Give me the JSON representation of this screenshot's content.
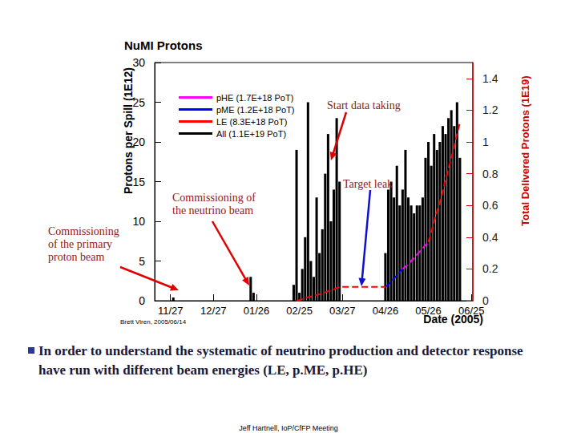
{
  "chart_data": {
    "type": "bar",
    "title": "NuMI Protons",
    "x_label": "Date (2005)",
    "y_label": "Protons per Spill (1E12)",
    "y2_label": "Total Delivered Protons (1E19)",
    "categories": [
      null,
      null,
      null,
      null,
      null,
      "11/27",
      null,
      null,
      null,
      null,
      null,
      null,
      null,
      null,
      null,
      null,
      null,
      null,
      null,
      null,
      "12/27",
      null,
      null,
      null,
      null,
      null,
      null,
      null,
      null,
      null,
      null,
      null,
      null,
      null,
      null,
      "01/26",
      null,
      null,
      null,
      null,
      null,
      null,
      null,
      null,
      null,
      null,
      null,
      null,
      null,
      null,
      "02/25",
      null,
      null,
      null,
      null,
      null,
      null,
      null,
      null,
      null,
      null,
      null,
      null,
      null,
      null,
      "03/27",
      null,
      null,
      null,
      null,
      null,
      null,
      null,
      null,
      null,
      null,
      null,
      null,
      null,
      null,
      "04/26",
      null,
      null,
      null,
      null,
      null,
      null,
      null,
      null,
      null,
      null,
      null,
      null,
      null,
      null,
      "05/26",
      null,
      null,
      null,
      null,
      null,
      null,
      null,
      null,
      null,
      null,
      null,
      null,
      null,
      null,
      "06/25"
    ],
    "series": [
      {
        "name": "pHE (1.7E+18 PoT)",
        "type": "line",
        "axis": "y2",
        "color": "#ff00ff",
        "line_style": "dashed",
        "values": [
          null,
          null,
          null,
          null,
          null,
          null,
          null,
          null,
          null,
          null,
          null,
          null,
          null,
          null,
          null,
          null,
          null,
          null,
          null,
          null,
          null,
          null,
          null,
          null,
          null,
          null,
          null,
          null,
          null,
          null,
          null,
          null,
          null,
          null,
          null,
          null,
          null,
          null,
          null,
          null,
          null,
          null,
          null,
          null,
          null,
          null,
          null,
          null,
          null,
          null,
          null,
          null,
          null,
          null,
          null,
          null,
          null,
          null,
          null,
          null,
          null,
          null,
          null,
          null,
          null,
          null,
          null,
          null,
          null,
          null,
          null,
          null,
          null,
          null,
          null,
          null,
          null,
          null,
          null,
          null,
          null,
          null,
          null,
          null,
          null,
          null,
          0.2,
          0.215,
          0.23,
          0.25,
          0.27,
          0.29,
          0.31,
          0.33,
          0.35,
          0.37,
          null,
          null,
          null,
          null,
          null,
          null,
          null,
          null,
          null,
          null,
          null,
          null,
          null,
          null,
          null
        ]
      },
      {
        "name": "pME (1.2E+18 PoT)",
        "type": "line",
        "axis": "y2",
        "color": "#0000ff",
        "line_style": "dashed",
        "values": [
          null,
          null,
          null,
          null,
          null,
          null,
          null,
          null,
          null,
          null,
          null,
          null,
          null,
          null,
          null,
          null,
          null,
          null,
          null,
          null,
          null,
          null,
          null,
          null,
          null,
          null,
          null,
          null,
          null,
          null,
          null,
          null,
          null,
          null,
          null,
          null,
          null,
          null,
          null,
          null,
          null,
          null,
          null,
          null,
          null,
          null,
          null,
          null,
          null,
          null,
          null,
          null,
          null,
          null,
          null,
          null,
          null,
          null,
          null,
          null,
          null,
          null,
          null,
          null,
          null,
          null,
          null,
          null,
          null,
          null,
          null,
          null,
          null,
          null,
          null,
          null,
          null,
          null,
          null,
          null,
          0.087,
          0.1,
          0.12,
          0.14,
          0.16,
          0.18,
          0.2,
          null,
          null,
          null,
          null,
          null,
          null,
          null,
          null,
          null,
          null,
          null,
          null,
          null,
          null,
          null,
          null,
          null,
          null,
          null,
          null,
          null,
          null,
          null,
          null
        ]
      },
      {
        "name": "LE (8.3E+18 PoT)",
        "type": "line",
        "axis": "y2",
        "color": "#ff0000",
        "line_style": "dashed",
        "values": [
          null,
          null,
          null,
          null,
          null,
          null,
          null,
          null,
          null,
          null,
          null,
          null,
          null,
          null,
          null,
          null,
          null,
          null,
          null,
          null,
          null,
          null,
          null,
          null,
          null,
          null,
          null,
          null,
          null,
          null,
          null,
          null,
          null,
          null,
          null,
          null,
          null,
          null,
          null,
          null,
          null,
          null,
          null,
          null,
          null,
          null,
          null,
          null,
          null,
          0,
          0.004,
          0.01,
          0.016,
          0.022,
          0.026,
          0.03,
          0.036,
          0.04,
          0.046,
          0.052,
          0.06,
          0.065,
          0.071,
          0.08,
          0.087,
          0.087,
          0.087,
          0.087,
          0.087,
          0.087,
          0.087,
          0.087,
          0.087,
          0.087,
          0.087,
          0.087,
          0.087,
          0.087,
          0.087,
          0.087,
          0.087,
          null,
          null,
          null,
          null,
          null,
          null,
          null,
          null,
          null,
          null,
          null,
          null,
          null,
          null,
          0.37,
          0.43,
          0.5,
          0.56,
          0.62,
          0.69,
          0.76,
          0.83,
          0.9,
          0.97,
          1.05,
          1.12,
          null,
          null,
          null,
          null
        ]
      },
      {
        "name": "All (1.1E+19 PoT)",
        "type": "bar",
        "color": "#000000",
        "values": [
          0,
          0,
          0,
          0,
          0,
          0,
          0.4,
          0,
          0,
          0,
          0,
          0,
          0,
          0,
          0,
          0,
          0,
          0,
          0,
          0,
          0,
          0,
          0,
          0,
          0,
          0,
          0,
          0,
          0,
          0,
          0,
          0,
          0,
          3,
          1,
          0,
          0,
          0,
          0,
          0,
          0,
          0,
          0,
          0,
          0,
          0,
          0,
          0,
          2,
          19,
          1,
          4,
          8,
          25,
          5,
          3,
          13,
          6,
          9,
          16,
          21,
          10,
          14,
          23,
          15,
          0,
          0,
          0,
          0,
          0,
          0,
          0,
          0,
          0,
          0,
          0,
          0,
          0,
          0,
          0,
          6,
          14,
          15,
          13,
          17,
          12,
          14,
          19,
          13,
          12,
          11,
          12,
          12,
          13,
          18,
          20,
          17,
          21,
          19,
          20,
          22,
          21,
          23,
          24,
          22,
          25,
          18,
          0,
          0,
          0,
          0
        ]
      }
    ],
    "ylim": [
      0,
      30
    ],
    "yticks": [
      0,
      5,
      10,
      15,
      20,
      25,
      30
    ],
    "y2lim": [
      0,
      1.5
    ],
    "y2ticks": [
      0,
      0.2,
      0.4,
      0.6,
      0.8,
      1,
      1.2,
      1.4
    ],
    "grid": false,
    "legend": "upper left",
    "annotations": [
      {
        "text": "Start data taking"
      },
      {
        "text": "Target leak"
      },
      {
        "text": "Commissioning of\nthe neutrino beam"
      },
      {
        "text": "Commissioning\nof the primary\nproton beam"
      },
      {
        "text": "Brett Viren, 2005/06/14"
      }
    ]
  },
  "page": {
    "bullet": "In order to understand the systematic of neutrino production and detector response have run with different beam energies (LE, p.ME, p.HE)",
    "footer": "Jeff Hartnell, IoP/CfFP Meeting"
  }
}
